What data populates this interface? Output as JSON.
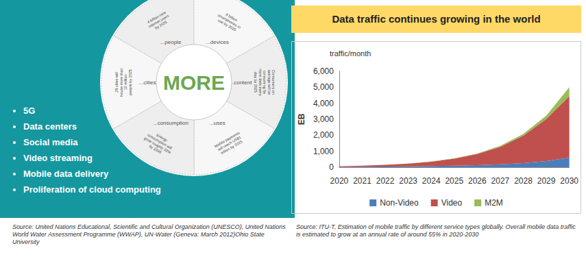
{
  "infographic": {
    "center_label": "MORE",
    "segments": [
      {
        "label": "...people",
        "fact": "4 billion new internet users by 2025"
      },
      {
        "label": "...devices",
        "fact": "8 billion smartphones in use by 2025"
      },
      {
        "label": "...content",
        "fact": "Consumers on average will be consuming 5x more data every day by 2025"
      },
      {
        "label": "...uses",
        "fact": "Mobile payments will reach US$1 trillion by 2025"
      },
      {
        "label": "...consumption",
        "fact": "Energy consumption will grow roughly 33% by 2035"
      },
      {
        "label": "...cities",
        "fact": "29 cities will house more than 10 million people by 2025"
      }
    ]
  },
  "bullets": [
    "5G",
    "Data centers",
    "Social media",
    "Video streaming",
    "Mobile data delivery",
    "Proliferation of cloud computing"
  ],
  "sources": [
    "Source: United Nations Educational, Scientific and Cultural Organization (UNESCO), United Nations World Water Assessment Programme (WWAP), UN-Water (Geneva: March 2012)Ohio State University",
    "Source: ITU-T, Estimation of mobile traffic by different service types globally. Overall mobile data traffic is estimated to grow at an annual rate of around 55% in 2020-2030"
  ],
  "chart_data": {
    "type": "area",
    "title": "Data traffic continues growing in the world",
    "ylabel": "EB",
    "annotations": [
      "traffic/month"
    ],
    "categories": [
      "2020",
      "2021",
      "2022",
      "2023",
      "2024",
      "2025",
      "2026",
      "2027",
      "2028",
      "2029",
      "2030"
    ],
    "series": [
      {
        "name": "Non-Video",
        "color": "#4a7ebb",
        "values": [
          20,
          28,
          38,
          50,
          70,
          95,
          130,
          180,
          260,
          390,
          600
        ]
      },
      {
        "name": "Video",
        "color": "#c0504d",
        "values": [
          40,
          65,
          107,
          172,
          277,
          445,
          695,
          1100,
          1710,
          2630,
          3850
        ]
      },
      {
        "name": "M2M",
        "color": "#9bbb59",
        "values": [
          2,
          3,
          5,
          8,
          13,
          20,
          35,
          60,
          110,
          200,
          550
        ]
      }
    ],
    "stacked": true,
    "legend": "bottom",
    "grid": false,
    "ylim": [
      0,
      6000
    ],
    "yticks": [
      0,
      1000,
      2000,
      3000,
      4000,
      5000,
      6000
    ]
  }
}
